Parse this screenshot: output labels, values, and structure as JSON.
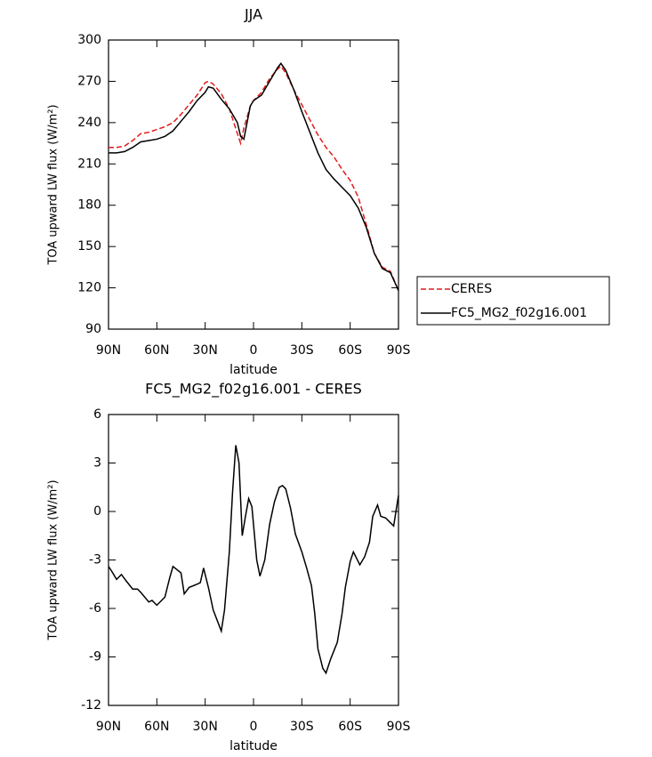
{
  "chart_data": [
    {
      "type": "line",
      "title": "JJA",
      "xlabel": "latitude",
      "ylabel": "TOA upward LW flux (W/m²)",
      "x": [
        90,
        85,
        80,
        75,
        70,
        65,
        60,
        55,
        50,
        45,
        40,
        35,
        30,
        28,
        25,
        20,
        15,
        10,
        8,
        6,
        2,
        0,
        -5,
        -10,
        -15,
        -17,
        -20,
        -25,
        -30,
        -35,
        -40,
        -45,
        -50,
        -55,
        -60,
        -65,
        -70,
        -75,
        -80,
        -85,
        -90
      ],
      "series": [
        {
          "name": "CERES",
          "color": "#e41a1c",
          "style": "dashed",
          "values": [
            222,
            222,
            223,
            227,
            232,
            233,
            235,
            237,
            240,
            246,
            253,
            260,
            269,
            270,
            268,
            261,
            250,
            232,
            225,
            236,
            252,
            256,
            262,
            272,
            279,
            281,
            276,
            264,
            253,
            242,
            231,
            222,
            215,
            206,
            198,
            186,
            166,
            145,
            135,
            132,
            118
          ]
        },
        {
          "name": "FC5_MG2_f02g16.001",
          "color": "#000000",
          "style": "solid",
          "values": [
            218,
            218,
            219,
            222,
            226,
            227,
            228,
            230,
            234,
            241,
            248,
            256,
            262,
            266,
            265,
            257,
            250,
            240,
            230,
            228,
            252,
            256,
            260,
            270,
            280,
            283,
            278,
            264,
            248,
            233,
            218,
            206,
            199,
            193,
            187,
            178,
            164,
            145,
            134,
            131,
            118
          ]
        }
      ],
      "xlim": [
        90,
        -90
      ],
      "xticks": [
        {
          "value": 90,
          "label": "90N"
        },
        {
          "value": 60,
          "label": "60N"
        },
        {
          "value": 30,
          "label": "30N"
        },
        0,
        {
          "value": -30,
          "label": "30S"
        },
        {
          "value": -60,
          "label": "60S"
        },
        {
          "value": -90,
          "label": "90S"
        }
      ],
      "ylim": [
        90,
        300
      ],
      "yticks": [
        90,
        120,
        150,
        180,
        210,
        240,
        270,
        300
      ],
      "legend": "right"
    },
    {
      "type": "line",
      "title": "FC5_MG2_f02g16.001 - CERES",
      "xlabel": "latitude",
      "ylabel": "TOA upward LW flux (W/m²)",
      "x": [
        90,
        88,
        85,
        82,
        79,
        75,
        72,
        70,
        65,
        63,
        60,
        55,
        52,
        50,
        45,
        43,
        40,
        35,
        33,
        31,
        28,
        25,
        20,
        18,
        15,
        13,
        11,
        9,
        7,
        5,
        3,
        1,
        -2,
        -4,
        -7,
        -10,
        -13,
        -16,
        -18,
        -20,
        -23,
        -26,
        -30,
        -33,
        -36,
        -38,
        -40,
        -43,
        -45,
        -48,
        -52,
        -55,
        -57,
        -60,
        -62,
        -64,
        -66,
        -69,
        -72,
        -74,
        -77,
        -79,
        -82,
        -85,
        -87,
        -90
      ],
      "series": [
        {
          "name": "FC5_MG2_f02g16.001 - CERES",
          "color": "#000000",
          "style": "solid",
          "values": [
            -3.4,
            -3.7,
            -4.2,
            -3.9,
            -4.3,
            -4.8,
            -4.8,
            -5.0,
            -5.6,
            -5.5,
            -5.8,
            -5.3,
            -4.1,
            -3.4,
            -3.8,
            -5.1,
            -4.7,
            -4.5,
            -4.4,
            -3.5,
            -4.7,
            -6.1,
            -7.4,
            -6.1,
            -2.5,
            1.2,
            4.1,
            3.0,
            -1.5,
            -0.3,
            0.8,
            0.3,
            -3.0,
            -4.0,
            -3.0,
            -0.8,
            0.6,
            1.5,
            1.6,
            1.4,
            0.2,
            -1.4,
            -2.5,
            -3.5,
            -4.6,
            -6.3,
            -8.5,
            -9.7,
            -10.0,
            -9.1,
            -8.1,
            -6.3,
            -4.7,
            -3.1,
            -2.5,
            -2.9,
            -3.3,
            -2.8,
            -1.9,
            -0.3,
            0.4,
            -0.3,
            -0.4,
            -0.7,
            -0.9,
            1.0
          ]
        }
      ],
      "xlim": [
        90,
        -90
      ],
      "xticks": [
        {
          "value": 90,
          "label": "90N"
        },
        {
          "value": 60,
          "label": "60N"
        },
        {
          "value": 30,
          "label": "30N"
        },
        0,
        {
          "value": -30,
          "label": "30S"
        },
        {
          "value": -60,
          "label": "60S"
        },
        {
          "value": -90,
          "label": "90S"
        }
      ],
      "ylim": [
        -12,
        6
      ],
      "yticks": [
        -12,
        -9,
        -6,
        -3,
        0,
        3,
        6
      ]
    }
  ]
}
